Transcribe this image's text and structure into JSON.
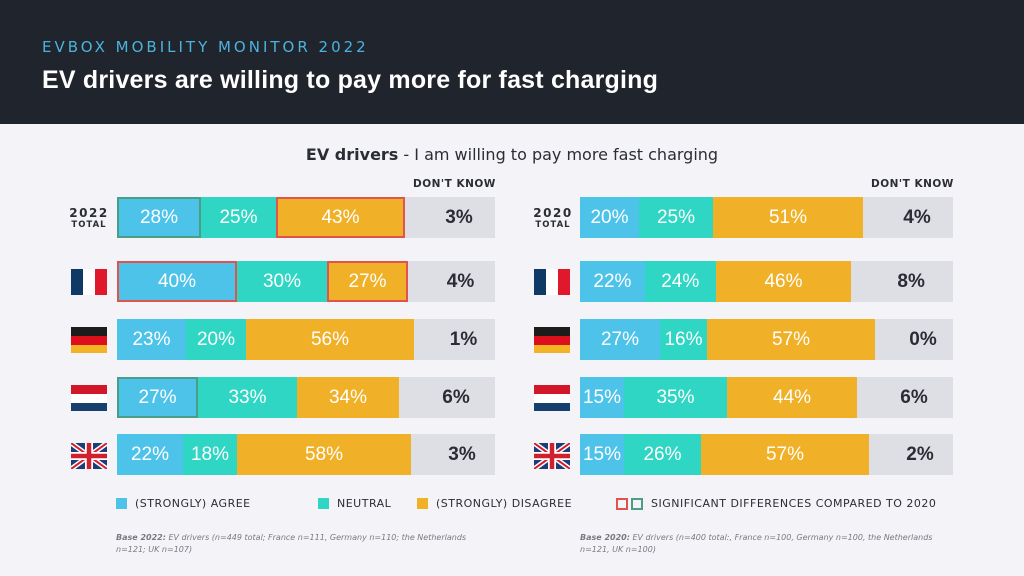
{
  "header": {
    "kicker": "EVBOX MOBILITY MONITOR 2022",
    "title": "EV drivers are willing to pay more for fast charging"
  },
  "subtitle": {
    "bold": "EV drivers",
    "rest": " - I am willing to pay more fast charging"
  },
  "colors": {
    "agree": "#4ec3ea",
    "neutral": "#2fd6c3",
    "disagree": "#f0b128",
    "dont_know": "#dedfe4",
    "sig_red": "#e0534f",
    "sig_green": "#4a9e86"
  },
  "chart_data": [
    {
      "type": "bar",
      "orientation": "horizontal-stacked",
      "title": "2022",
      "dont_know_header": "DON'T KNOW",
      "categories": [
        "2022 TOTAL",
        "France",
        "Germany",
        "Netherlands",
        "UK"
      ],
      "series": [
        {
          "name": "(STRONGLY) AGREE",
          "values": [
            28,
            40,
            23,
            27,
            22
          ]
        },
        {
          "name": "NEUTRAL",
          "values": [
            25,
            30,
            20,
            33,
            18
          ]
        },
        {
          "name": "(STRONGLY) DISAGREE",
          "values": [
            43,
            27,
            56,
            34,
            58
          ]
        },
        {
          "name": "DON'T KNOW",
          "values": [
            3,
            4,
            1,
            6,
            3
          ]
        }
      ],
      "significance": [
        {
          "row": 0,
          "series": 0,
          "direction": "green"
        },
        {
          "row": 0,
          "series": 2,
          "direction": "red"
        },
        {
          "row": 1,
          "series": 0,
          "direction": "red"
        },
        {
          "row": 1,
          "series": 2,
          "direction": "red"
        },
        {
          "row": 3,
          "series": 0,
          "direction": "green"
        }
      ]
    },
    {
      "type": "bar",
      "orientation": "horizontal-stacked",
      "title": "2020",
      "dont_know_header": "DON'T KNOW",
      "categories": [
        "2020 TOTAL",
        "France",
        "Germany",
        "Netherlands",
        "UK"
      ],
      "series": [
        {
          "name": "(STRONGLY) AGREE",
          "values": [
            20,
            22,
            27,
            15,
            15
          ]
        },
        {
          "name": "NEUTRAL",
          "values": [
            25,
            24,
            16,
            35,
            26
          ]
        },
        {
          "name": "(STRONGLY) DISAGREE",
          "values": [
            51,
            46,
            57,
            44,
            57
          ]
        },
        {
          "name": "DON'T KNOW",
          "values": [
            4,
            8,
            0,
            6,
            2
          ]
        }
      ],
      "significance": []
    }
  ],
  "row_labels": {
    "left_total_year": "2022",
    "right_total_year": "2020",
    "total_word": "TOTAL"
  },
  "legend": {
    "agree": "(STRONGLY) AGREE",
    "neutral": "NEUTRAL",
    "disagree": "(STRONGLY) DISAGREE",
    "significant": "SIGNIFICANT DIFFERENCES COMPARED TO 2020"
  },
  "notes": {
    "left_bold": "Base 2022:",
    "left_text": " EV drivers (n=449 total; France n=111, Germany n=110;  the Netherlands n=121; UK n=107)",
    "right_bold": "Base 2020:",
    "right_text": " EV drivers (n=400 total:, France n=100, Germany n=100, the Netherlands n=121, UK n=100)"
  }
}
